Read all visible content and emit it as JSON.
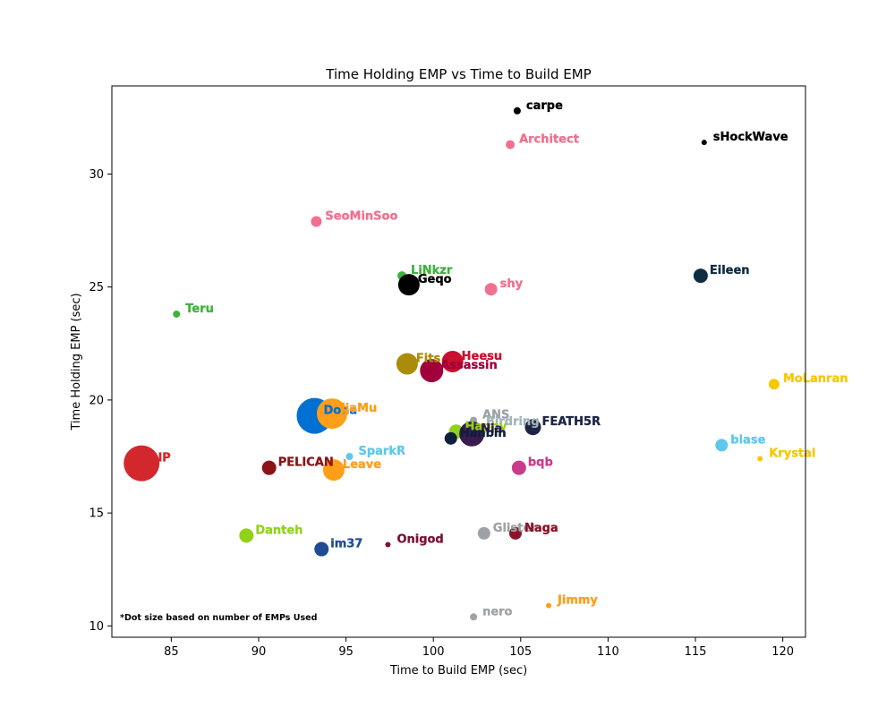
{
  "chart_data": {
    "type": "scatter",
    "title": "Time Holding EMP vs Time to Build EMP",
    "xlabel": "Time to Build EMP (sec)",
    "ylabel": "Time Holding EMP (sec)",
    "xlim": [
      81.6,
      121.3
    ],
    "ylim": [
      9.5,
      33.9
    ],
    "xticks": [
      85,
      90,
      95,
      100,
      105,
      110,
      115,
      120
    ],
    "yticks": [
      10,
      15,
      20,
      25,
      30
    ],
    "grid": false,
    "annotation": "*Dot size based on number of EMPs Used",
    "points": [
      {
        "name": "carpe",
        "x": 104.8,
        "y": 32.8,
        "size": 4,
        "color": "#000000"
      },
      {
        "name": "sHockWave",
        "x": 115.5,
        "y": 31.4,
        "size": 3,
        "color": "#000000"
      },
      {
        "name": "Architect",
        "x": 104.4,
        "y": 31.3,
        "size": 5,
        "color": "#f0708f"
      },
      {
        "name": "SeoMinSoo",
        "x": 93.3,
        "y": 27.9,
        "size": 6,
        "color": "#f0708f"
      },
      {
        "name": "LiNkzr",
        "x": 98.2,
        "y": 25.5,
        "size": 5,
        "color": "#3cb43c"
      },
      {
        "name": "Eileen",
        "x": 115.3,
        "y": 25.5,
        "size": 8,
        "color": "#0f2d41"
      },
      {
        "name": "Geqo",
        "x": 98.6,
        "y": 25.1,
        "size": 12,
        "color": "#000000"
      },
      {
        "name": "shy",
        "x": 103.3,
        "y": 24.9,
        "size": 7,
        "color": "#f0708f"
      },
      {
        "name": "Teru",
        "x": 85.3,
        "y": 23.8,
        "size": 4,
        "color": "#3cb43c"
      },
      {
        "name": "Heesu",
        "x": 101.1,
        "y": 21.7,
        "size": 12,
        "color": "#c8102e"
      },
      {
        "name": "Fits",
        "x": 98.5,
        "y": 21.6,
        "size": 12,
        "color": "#aa8c0a"
      },
      {
        "name": "Assassin",
        "x": 99.9,
        "y": 21.3,
        "size": 13,
        "color": "#a0003c"
      },
      {
        "name": "MoLanran",
        "x": 119.5,
        "y": 20.7,
        "size": 6,
        "color": "#f5c800"
      },
      {
        "name": "Doha",
        "x": 93.2,
        "y": 19.3,
        "size": 20,
        "color": "#0070d2"
      },
      {
        "name": "JjaMu",
        "x": 94.2,
        "y": 19.4,
        "size": 17,
        "color": "#ff9e18"
      },
      {
        "name": "ANS",
        "x": 102.3,
        "y": 19.1,
        "size": 4,
        "color": "#9ea2a6"
      },
      {
        "name": "FEATH5R",
        "x": 105.7,
        "y": 18.8,
        "size": 9,
        "color": "#1e2446"
      },
      {
        "name": "Birdring",
        "x": 102.5,
        "y": 18.8,
        "size": 5,
        "color": "#a0b4b4"
      },
      {
        "name": "Happy",
        "x": 101.3,
        "y": 18.6,
        "size": 8,
        "color": "#91d219"
      },
      {
        "name": "Nia",
        "x": 102.2,
        "y": 18.5,
        "size": 14,
        "color": "#3a1a4f"
      },
      {
        "name": "Hanbin",
        "x": 101.0,
        "y": 18.3,
        "size": 7,
        "color": "#0f1e3c"
      },
      {
        "name": "blase",
        "x": 116.5,
        "y": 18.0,
        "size": 7,
        "color": "#5dc8eb"
      },
      {
        "name": "SparkR",
        "x": 95.2,
        "y": 17.5,
        "size": 4,
        "color": "#5dc8eb"
      },
      {
        "name": "Krystal",
        "x": 118.7,
        "y": 17.4,
        "size": 3,
        "color": "#f5c800"
      },
      {
        "name": "LIP",
        "x": 83.3,
        "y": 17.2,
        "size": 20,
        "color": "#d2282d"
      },
      {
        "name": "PELICAN",
        "x": 90.6,
        "y": 17.0,
        "size": 8,
        "color": "#8c1414"
      },
      {
        "name": "bqb",
        "x": 104.9,
        "y": 17.0,
        "size": 8,
        "color": "#c83c8c"
      },
      {
        "name": "Leave",
        "x": 94.3,
        "y": 16.9,
        "size": 12,
        "color": "#ff9e18"
      },
      {
        "name": "Glister",
        "x": 102.9,
        "y": 14.1,
        "size": 7,
        "color": "#9ea2a6"
      },
      {
        "name": "Naga",
        "x": 104.7,
        "y": 14.1,
        "size": 7,
        "color": "#8c1428"
      },
      {
        "name": "Danteh",
        "x": 89.3,
        "y": 14.0,
        "size": 8,
        "color": "#91d219"
      },
      {
        "name": "Onigod",
        "x": 97.4,
        "y": 13.6,
        "size": 3,
        "color": "#7a1432"
      },
      {
        "name": "im37",
        "x": 93.6,
        "y": 13.4,
        "size": 8,
        "color": "#1e4b96"
      },
      {
        "name": "Jimmy",
        "x": 106.6,
        "y": 10.9,
        "size": 3,
        "color": "#ff9e18"
      },
      {
        "name": "nero",
        "x": 102.3,
        "y": 10.4,
        "size": 4,
        "color": "#9ea2a6"
      }
    ]
  }
}
